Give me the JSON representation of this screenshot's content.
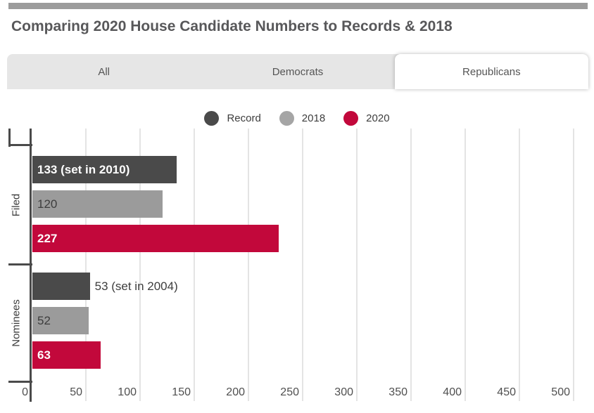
{
  "page": {
    "top_bar_color": "#9c9c9c",
    "title": "Comparing 2020 House Candidate Numbers to Records & 2018"
  },
  "tabs": [
    {
      "label": "All",
      "active": false
    },
    {
      "label": "Democrats",
      "active": false
    },
    {
      "label": "Republicans",
      "active": true
    }
  ],
  "legend": [
    {
      "label": "Record",
      "color": "#4a4a4a"
    },
    {
      "label": "2018",
      "color": "#a5a5a5"
    },
    {
      "label": "2020",
      "color": "#c2083b"
    }
  ],
  "chart_data": {
    "type": "bar",
    "orientation": "horizontal",
    "title": "Comparing 2020 House Candidate Numbers to Records & 2018",
    "categories": [
      "Filed",
      "Nominees"
    ],
    "series": [
      {
        "name": "Record",
        "color": "#4a4a4a",
        "values": [
          133,
          53
        ],
        "bar_labels": [
          "133 (set in 2010)",
          "53 (set in 2004)"
        ],
        "inside_label_color": "#ffffff",
        "inside_label_bold": true
      },
      {
        "name": "2018",
        "color": "#9b9b9b",
        "values": [
          120,
          52
        ],
        "bar_labels": [
          "120",
          "52"
        ],
        "inside_label_color": "#3d3d3d",
        "inside_label_bold": false
      },
      {
        "name": "2020",
        "color": "#c2083b",
        "values": [
          227,
          63
        ],
        "bar_labels": [
          "227",
          "63"
        ],
        "inside_label_color": "#ffffff",
        "inside_label_bold": true
      }
    ],
    "x_ticks": [
      0,
      50,
      100,
      150,
      200,
      250,
      300,
      350,
      400,
      450,
      500
    ],
    "xlim": [
      0,
      520
    ],
    "grid": true,
    "outside_label_color": "#3d3d3d",
    "gridline_color": "#e4e4e4",
    "axis_color": "#4a4a4a"
  }
}
